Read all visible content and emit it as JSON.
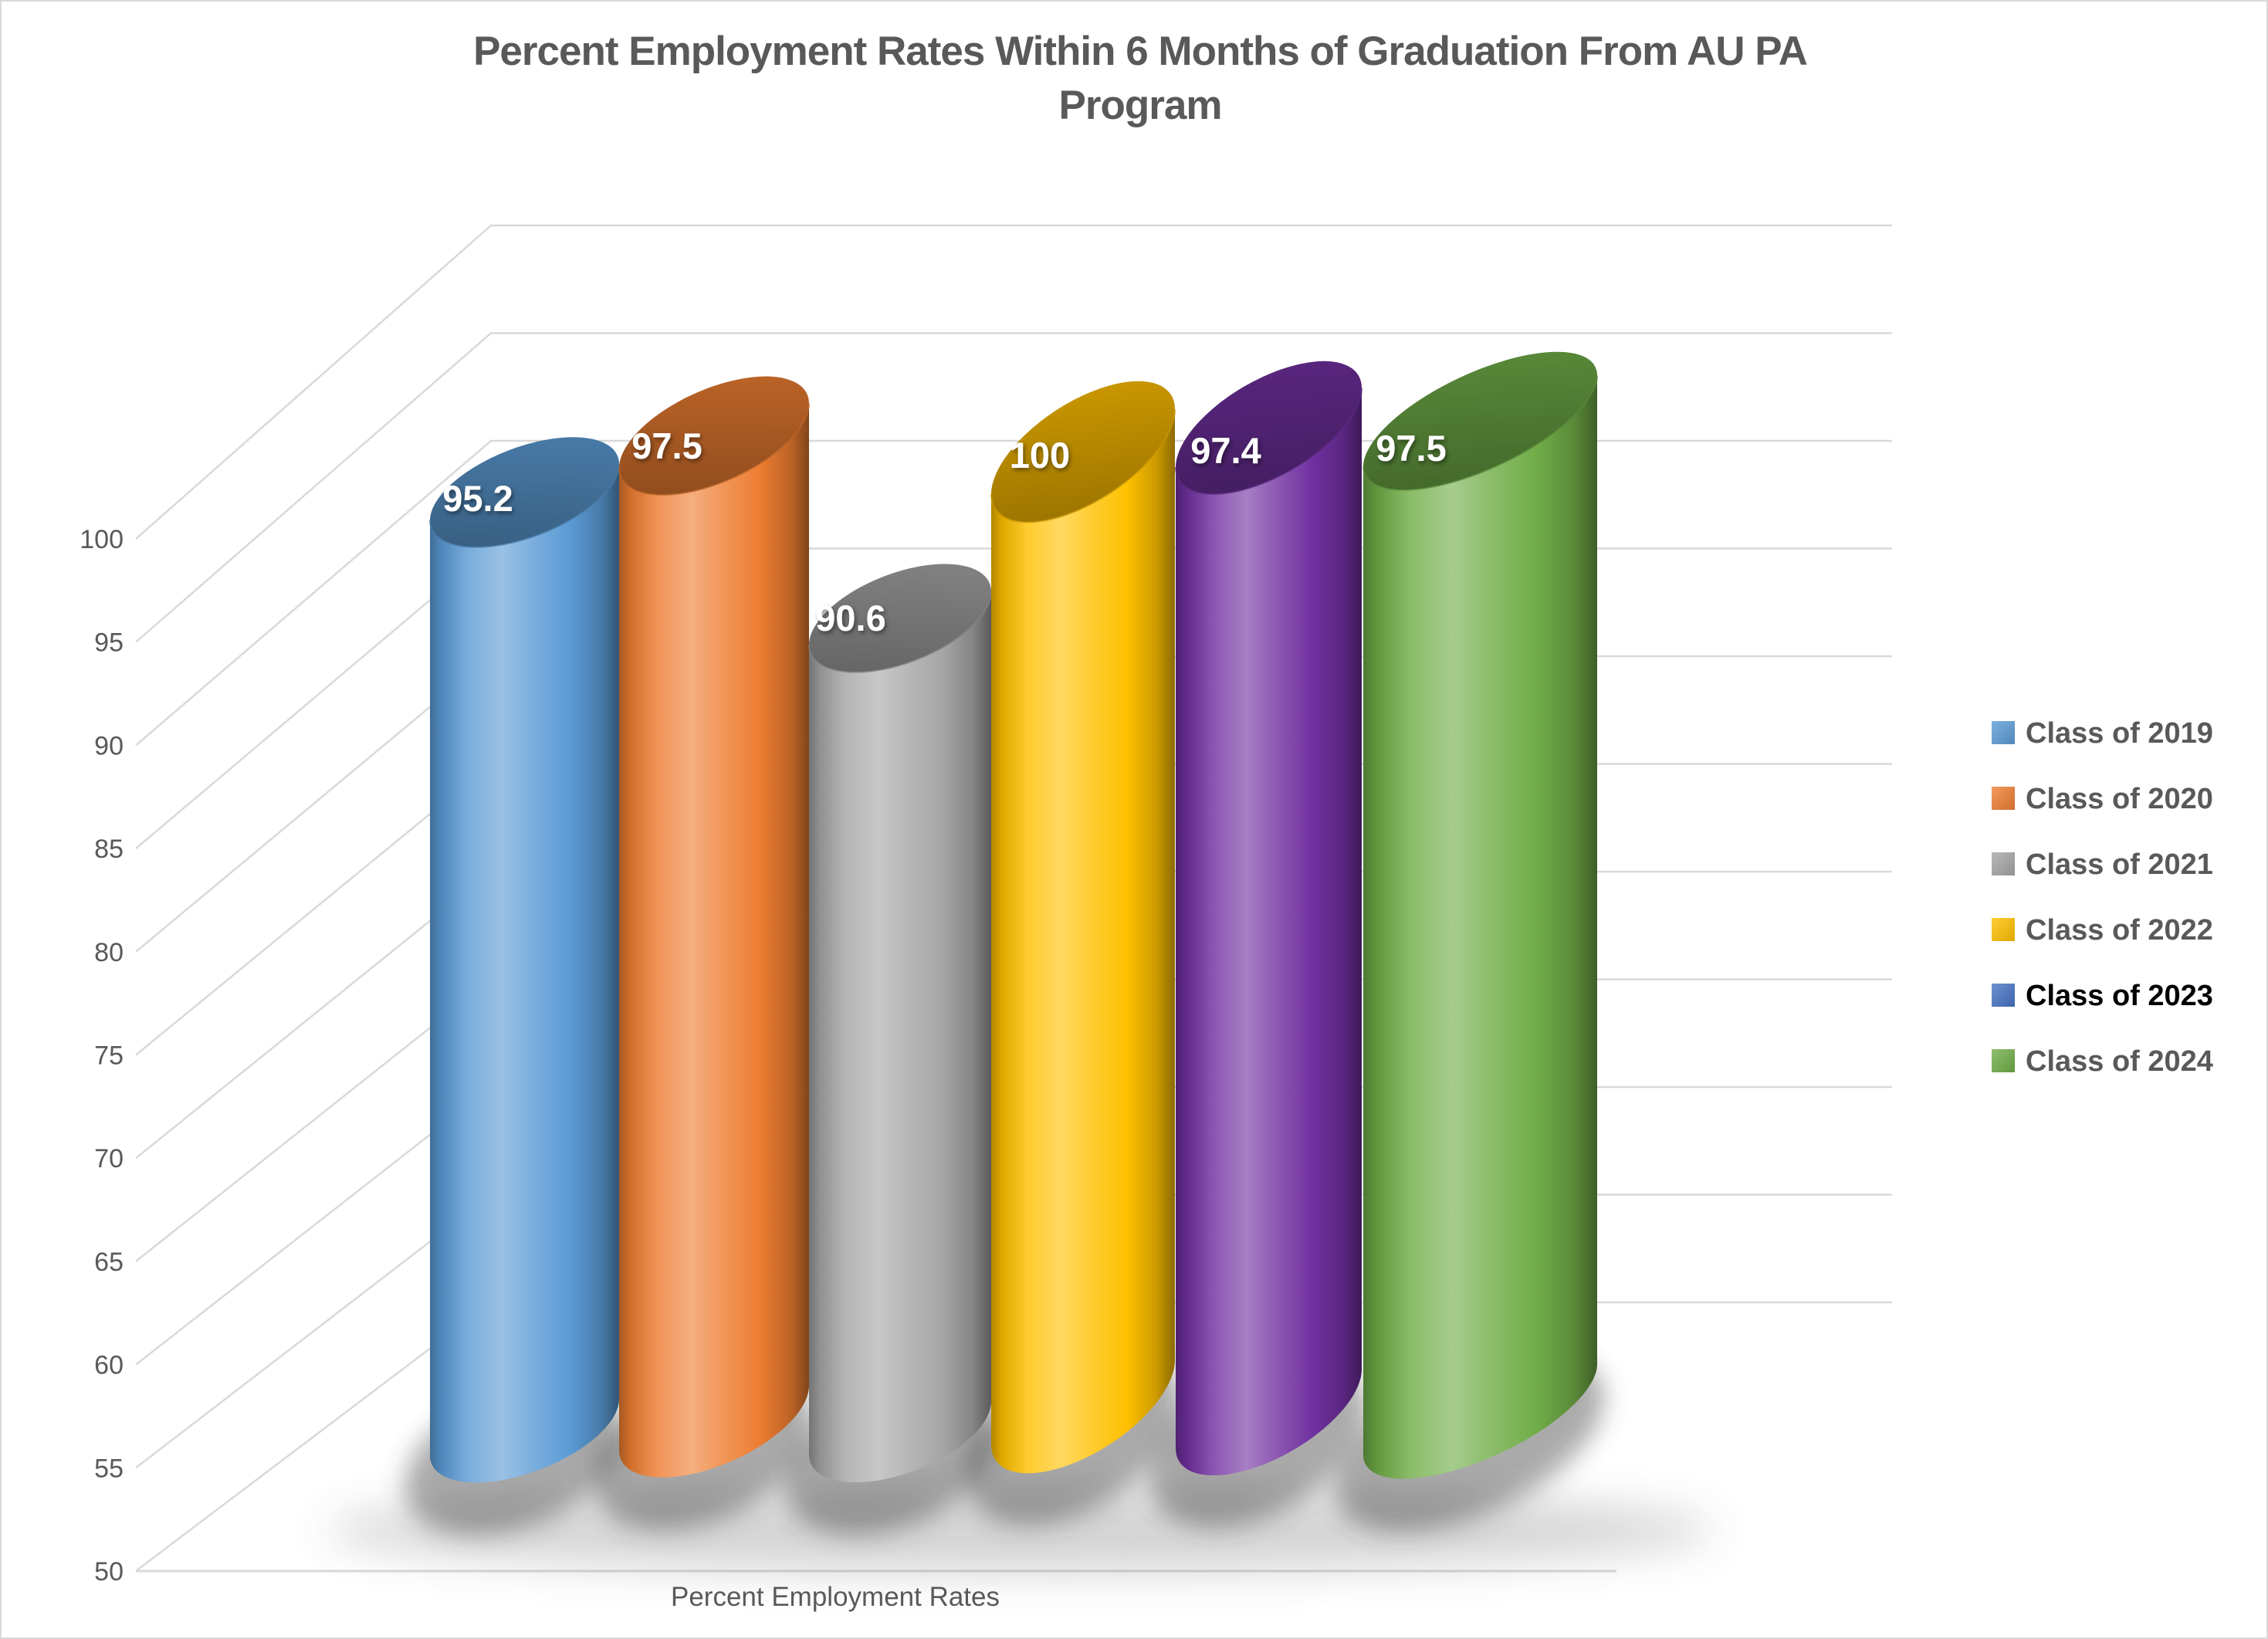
{
  "chart": {
    "title_line1": "Percent Employment Rates Within 6 Months of Graduation From AU PA",
    "title_line2": "Program",
    "title": "Percent Employment Rates Within 6 Months of Graduation From AU PA Program",
    "axis_title": "Percent Employment Rates"
  },
  "chart_data": {
    "type": "bar",
    "style": "3d-cylinder",
    "title": "Percent Employment Rates Within 6 Months of Graduation From AU PA Program",
    "xlabel": "Percent Employment Rates",
    "ylabel": "",
    "ylim": [
      50,
      100
    ],
    "ytick_interval": 5,
    "yticks": [
      100,
      95,
      90,
      85,
      80,
      75,
      70,
      65,
      60,
      55,
      50
    ],
    "ytick_labels": [
      "100",
      "95",
      "90",
      "85",
      "80",
      "75",
      "70",
      "65",
      "60",
      "55",
      "50"
    ],
    "grid": true,
    "legend_position": "right",
    "data_label_color": "#FFFFFF",
    "gridline_color": "#D9D9D9",
    "text_color": "#595959",
    "categories": [
      "Class of 2019",
      "Class of 2020",
      "Class of 2021",
      "Class of 2022",
      "Class of 2023",
      "Class of 2024"
    ],
    "values": [
      95.2,
      97.5,
      90.6,
      100,
      97.4,
      97.5
    ],
    "series": [
      {
        "name": "Class of 2019",
        "value": 95.2,
        "label": "95.2",
        "color": "#5B9BD5",
        "legend_color": "#5B9BD5",
        "legend_text_color": "#595959"
      },
      {
        "name": "Class of 2020",
        "value": 97.5,
        "label": "97.5",
        "color": "#ED7D31",
        "legend_color": "#ED7D31",
        "legend_text_color": "#595959"
      },
      {
        "name": "Class of 2021",
        "value": 90.6,
        "label": "90.6",
        "color": "#A5A5A5",
        "legend_color": "#A5A5A5",
        "legend_text_color": "#595959"
      },
      {
        "name": "Class of 2022",
        "value": 100,
        "label": "100",
        "color": "#FFC000",
        "legend_color": "#FFC000",
        "legend_text_color": "#595959"
      },
      {
        "name": "Class of 2023",
        "value": 97.4,
        "label": "97.4",
        "color": "#7030A0",
        "legend_color": "#4472C4",
        "legend_text_color": "#000000"
      },
      {
        "name": "Class of 2024",
        "value": 97.5,
        "label": "97.5",
        "color": "#70AD47",
        "legend_color": "#70AD47",
        "legend_text_color": "#595959"
      }
    ]
  }
}
